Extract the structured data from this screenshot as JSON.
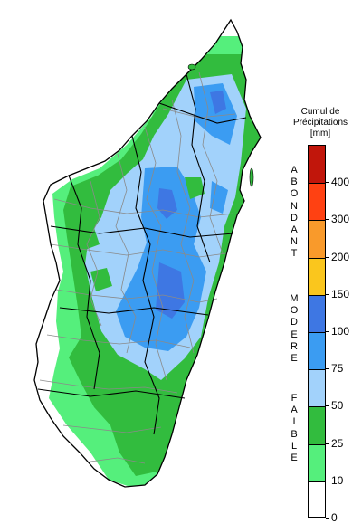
{
  "legend": {
    "title_lines": [
      "Cumul de",
      "Précipitations",
      "[mm]"
    ],
    "ticks": [
      "0",
      "10",
      "25",
      "50",
      "75",
      "100",
      "150",
      "200",
      "300",
      "400"
    ],
    "colors": [
      "#ffffff",
      "#55ef7c",
      "#32bc3e",
      "#a2d2fb",
      "#3b9cf2",
      "#3e77e3",
      "#fac61d",
      "#f99a2b",
      "#ff4112",
      "#c1160b"
    ],
    "categories": [
      {
        "name": "ABONDANT",
        "letters": [
          "A",
          "B",
          "O",
          "N",
          "D",
          "A",
          "N",
          "T"
        ]
      },
      {
        "name": "MODERE",
        "letters": [
          "M",
          "O",
          "D",
          "E",
          "R",
          "E"
        ]
      },
      {
        "name": "FAIBLE",
        "letters": [
          "F",
          "A",
          "I",
          "B",
          "L",
          "E"
        ]
      }
    ]
  },
  "map": {
    "zone_colors": {
      "faible_light": "#55ef7c",
      "faible_dark": "#32bc3e",
      "modere_light": "#a2d2fb",
      "modere_mid": "#3b9cf2",
      "modere_dark": "#3e77e3",
      "outline": "#000000",
      "district_lines": "#8a8a8a"
    }
  }
}
